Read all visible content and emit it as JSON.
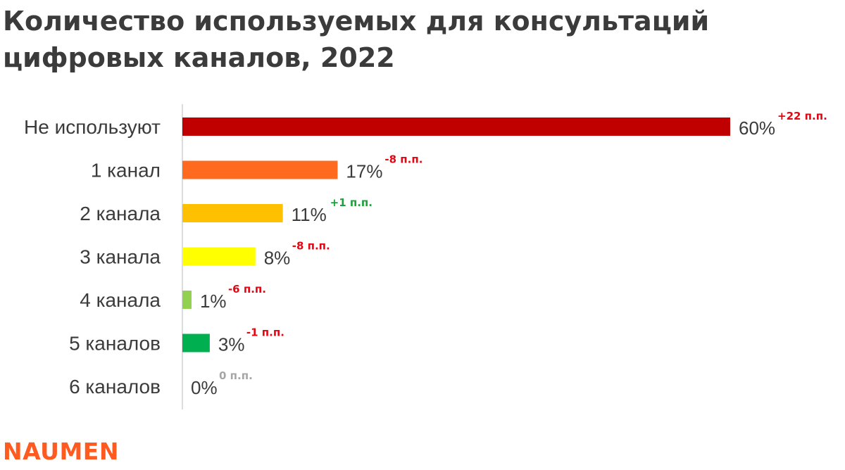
{
  "chart_data": {
    "type": "bar",
    "orientation": "horizontal",
    "title": "Количество используемых для консультаций цифровых каналов, 2022",
    "categories": [
      "Не используют",
      "1 канал",
      "2 канала",
      "3 канала",
      "4 канала",
      "5 каналов",
      "6 каналов"
    ],
    "values": [
      60,
      17,
      11,
      8,
      1,
      3,
      0
    ],
    "value_labels": [
      "60%",
      "17%",
      "11%",
      "8%",
      "1%",
      "3%",
      "0%"
    ],
    "changes": [
      "+22 п.п.",
      "-8 п.п.",
      "+1 п.п.",
      "-8 п.п.",
      "-6 п.п.",
      "-1 п.п.",
      "0 п.п."
    ],
    "change_colors": [
      "#e30613",
      "#e30613",
      "#1aa33a",
      "#e30613",
      "#e30613",
      "#e30613",
      "#a6a6a6"
    ],
    "bar_colors": [
      "#c00000",
      "#ff6a1f",
      "#ffc000",
      "#ffff00",
      "#92d050",
      "#00b050",
      "#d9d9d9"
    ],
    "unit": "%",
    "xlim": [
      0,
      60
    ],
    "grid": false
  },
  "logo": {
    "text": "NAUMEN",
    "color": "#ff5a1f"
  }
}
